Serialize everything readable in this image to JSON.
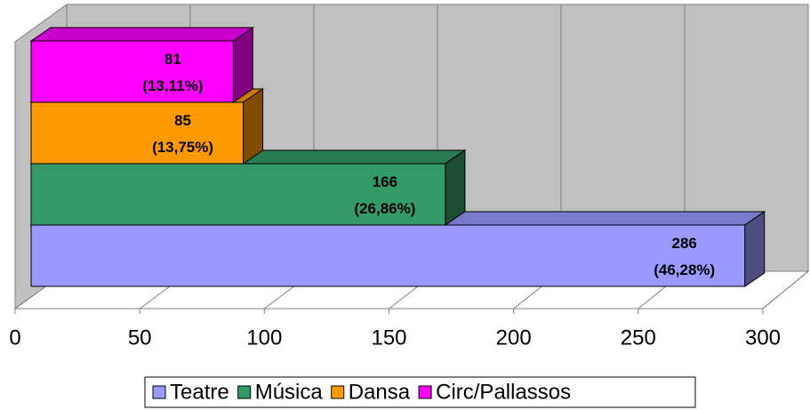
{
  "chart_data": {
    "type": "bar",
    "orientation": "horizontal",
    "series": [
      {
        "name": "Teatre",
        "color": "#9999ff",
        "values": [
          286
        ],
        "value_labels": [
          "286\n(46,28%)"
        ]
      },
      {
        "name": "Música",
        "color": "#339966",
        "values": [
          166
        ],
        "value_labels": [
          "166\n(26,86%)"
        ]
      },
      {
        "name": "Dansa",
        "color": "#ff9900",
        "values": [
          85
        ],
        "value_labels": [
          "85\n(13,75%)"
        ]
      },
      {
        "name": "Circ/Pallassos",
        "color": "#ff00ff",
        "values": [
          81
        ],
        "value_labels": [
          "81\n(13,11%)"
        ]
      }
    ],
    "xlim": [
      0,
      300
    ],
    "xticks": [
      0,
      50,
      100,
      150,
      200,
      250,
      300
    ],
    "grid": true,
    "legend": "bottom"
  }
}
